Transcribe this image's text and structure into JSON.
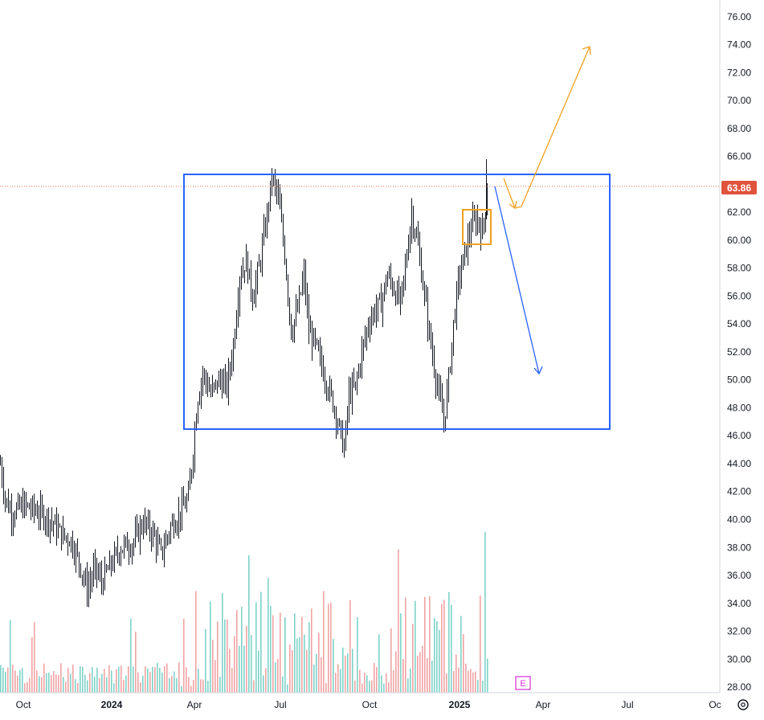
{
  "chart_data": {
    "type": "candlestick",
    "price_axis": {
      "ticks": [
        "76.00",
        "74.00",
        "72.00",
        "70.00",
        "68.00",
        "66.00",
        "64.00",
        "62.00",
        "60.00",
        "58.00",
        "56.00",
        "54.00",
        "52.00",
        "50.00",
        "48.00",
        "46.00",
        "44.00",
        "42.00",
        "40.00",
        "38.00",
        "36.00",
        "34.00",
        "32.00",
        "30.00",
        "28.00"
      ],
      "range": [
        27.6,
        77.2
      ]
    },
    "time_axis": {
      "ticks": [
        {
          "label": "Oct",
          "bold": false
        },
        {
          "label": "2024",
          "bold": true
        },
        {
          "label": "Apr",
          "bold": false
        },
        {
          "label": "Jul",
          "bold": false
        },
        {
          "label": "Oct",
          "bold": false
        },
        {
          "label": "2025",
          "bold": true
        },
        {
          "label": "Apr",
          "bold": false
        },
        {
          "label": "Jul",
          "bold": false
        },
        {
          "label": "Oc",
          "bold": false
        }
      ]
    },
    "current_price": 63.86,
    "current_price_label": "63.86",
    "price_path": [
      [
        0,
        44.0
      ],
      [
        6,
        41.5
      ],
      [
        14,
        40.5
      ],
      [
        30,
        41.0
      ],
      [
        48,
        40.5
      ],
      [
        62,
        40.0
      ],
      [
        75,
        39.0
      ],
      [
        88,
        38.5
      ],
      [
        98,
        37.0
      ],
      [
        108,
        35.0
      ],
      [
        118,
        36.5
      ],
      [
        126,
        35.5
      ],
      [
        138,
        36.8
      ],
      [
        150,
        38.0
      ],
      [
        165,
        38.3
      ],
      [
        178,
        39.8
      ],
      [
        190,
        39.0
      ],
      [
        200,
        37.5
      ],
      [
        212,
        39.5
      ],
      [
        224,
        40.5
      ],
      [
        234,
        41.5
      ],
      [
        240,
        45.0
      ],
      [
        245,
        48.5
      ],
      [
        252,
        50.5
      ],
      [
        262,
        49.0
      ],
      [
        272,
        50.0
      ],
      [
        282,
        49.5
      ],
      [
        290,
        52.5
      ],
      [
        298,
        57.5
      ],
      [
        306,
        58.5
      ],
      [
        314,
        56.0
      ],
      [
        322,
        58.0
      ],
      [
        330,
        61.0
      ],
      [
        338,
        64.5
      ],
      [
        346,
        63.0
      ],
      [
        354,
        59.0
      ],
      [
        362,
        53.5
      ],
      [
        370,
        55.0
      ],
      [
        378,
        57.5
      ],
      [
        384,
        53.5
      ],
      [
        392,
        52.5
      ],
      [
        400,
        51.0
      ],
      [
        408,
        49.5
      ],
      [
        416,
        48.0
      ],
      [
        422,
        46.5
      ],
      [
        428,
        45.0
      ],
      [
        434,
        49.0
      ],
      [
        442,
        49.5
      ],
      [
        450,
        52.0
      ],
      [
        458,
        54.0
      ],
      [
        466,
        55.0
      ],
      [
        474,
        55.5
      ],
      [
        482,
        57.5
      ],
      [
        490,
        56.5
      ],
      [
        498,
        55.5
      ],
      [
        504,
        58.0
      ],
      [
        512,
        62.0
      ],
      [
        520,
        59.5
      ],
      [
        528,
        56.0
      ],
      [
        536,
        52.5
      ],
      [
        544,
        49.5
      ],
      [
        552,
        47.0
      ],
      [
        558,
        50.0
      ],
      [
        564,
        54.0
      ],
      [
        570,
        57.0
      ],
      [
        578,
        59.0
      ],
      [
        586,
        61.0
      ],
      [
        594,
        61.5
      ],
      [
        600,
        60.5
      ],
      [
        604,
        62.5
      ],
      [
        607,
        63.86
      ]
    ],
    "volume_bars": {
      "x_start": 0,
      "x_end": 606,
      "step": 3
    }
  },
  "earnings_marker": {
    "label": "E"
  },
  "colors": {
    "candle": "#131722",
    "volume_up": "#7dd3c8",
    "volume_down": "#f1a3a3",
    "range_box": "#2962ff",
    "orange_arrow": "#f0a020",
    "blue_arrow": "#2962ff",
    "price_line": "#e8704a",
    "price_label_bg": "#e0533c",
    "earnings": "#d62dd6",
    "axis_line": "#d1d4dc"
  }
}
